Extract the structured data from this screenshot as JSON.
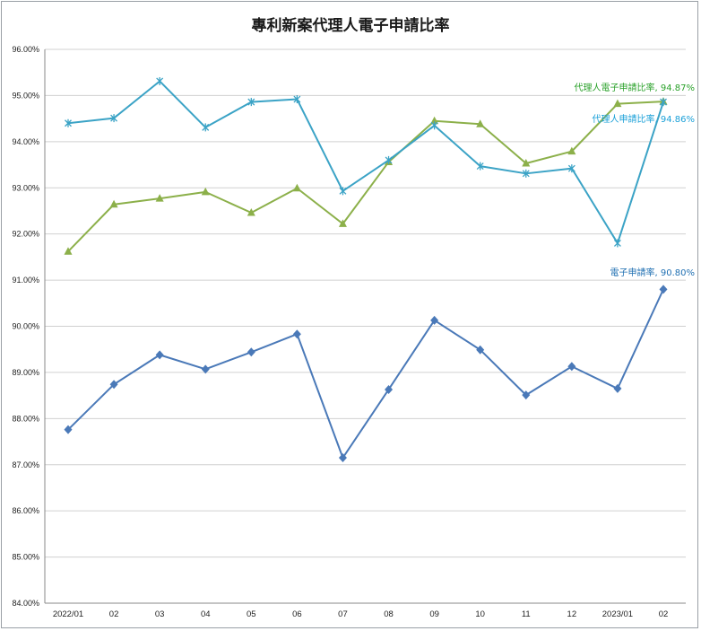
{
  "chart_data": {
    "type": "line",
    "title": "專利新案代理人電子申請比率",
    "categories": [
      "2022/01",
      "02",
      "03",
      "04",
      "05",
      "06",
      "07",
      "08",
      "09",
      "10",
      "11",
      "12",
      "2023/01",
      "02"
    ],
    "ylim": [
      84,
      96
    ],
    "yticks": [
      "84.00%",
      "85.00%",
      "86.00%",
      "87.00%",
      "88.00%",
      "89.00%",
      "90.00%",
      "91.00%",
      "92.00%",
      "93.00%",
      "94.00%",
      "95.00%",
      "96.00%"
    ],
    "grid": true,
    "series": [
      {
        "name": "代理人電子申請比率",
        "color": "#8cb04a",
        "marker": "triangle",
        "values": [
          91.62,
          92.64,
          92.77,
          92.91,
          92.46,
          92.99,
          92.22,
          93.56,
          94.45,
          94.38,
          93.53,
          93.79,
          94.82,
          94.87
        ],
        "end_label": "代理人電子申請比率, 94.87%",
        "label_color": "#2aa12a"
      },
      {
        "name": "代理人申請比率",
        "color": "#3ba3c6",
        "marker": "x",
        "values": [
          94.4,
          94.51,
          95.31,
          94.31,
          94.86,
          94.92,
          92.93,
          93.6,
          94.35,
          93.47,
          93.31,
          93.42,
          91.8,
          94.86
        ],
        "end_label": "代理人申請比率, 94.86%",
        "label_color": "#1aa0d8"
      },
      {
        "name": "電子申請率",
        "color": "#4a79b8",
        "marker": "diamond",
        "values": [
          87.76,
          88.74,
          89.38,
          89.07,
          89.44,
          89.83,
          87.15,
          88.63,
          90.13,
          89.49,
          88.51,
          89.13,
          88.65,
          90.8
        ],
        "end_label": "電子申請率, 90.80%",
        "label_color": "#1f6fb2"
      }
    ]
  }
}
